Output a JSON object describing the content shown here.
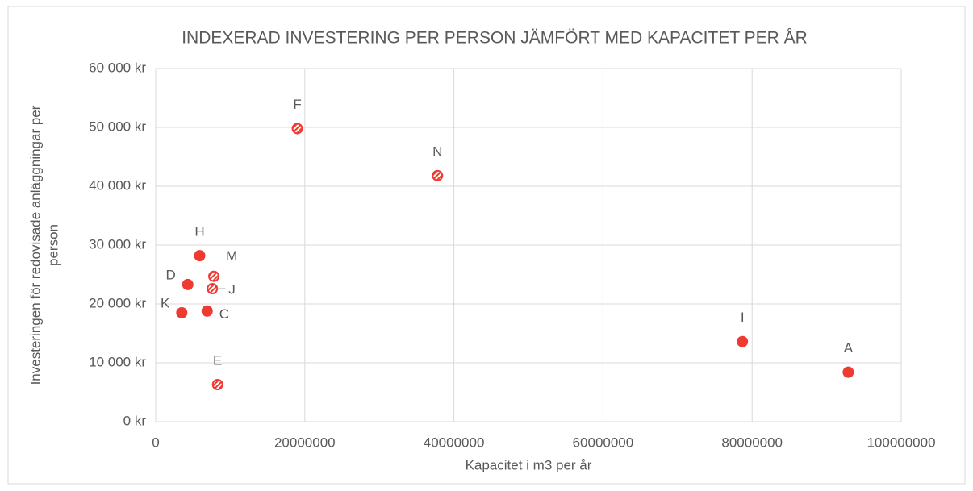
{
  "chart_data": {
    "type": "scatter",
    "title": "INDEXERAD INVESTERING PER PERSON JÄMFÖRT MED KAPACITET PER ÅR",
    "x_label": "Kapacitet i m3 per år",
    "y_label": [
      "Investeringen för redovisade anläggningar per",
      "person"
    ],
    "series": [
      {
        "color": "#ee3b32",
        "labels": [
          "F",
          "N",
          "H",
          "D",
          "M",
          "J",
          "K",
          "C",
          "E",
          "I",
          "A"
        ],
        "x": [
          19000000,
          37800000,
          5900000,
          4300000,
          7800000,
          7600000,
          3500000,
          6900000,
          8300000,
          78700000,
          92900000
        ],
        "values": [
          49800,
          41800,
          28200,
          23300,
          24700,
          22600,
          18500,
          18800,
          6300,
          13600,
          8400
        ],
        "markers": [
          "hatched",
          "hatched",
          "filled",
          "filled",
          "hatched",
          "hatched",
          "filled",
          "filled",
          "hatched",
          "filled",
          "filled"
        ]
      }
    ],
    "xlim": [
      0,
      100000000
    ],
    "xticks": [
      0,
      20000000,
      40000000,
      60000000,
      80000000,
      100000000
    ],
    "ylim": [
      0,
      60000
    ],
    "yticks": [
      {
        "value": 0,
        "label": "0 kr"
      },
      {
        "value": 10000,
        "label": "10 000 kr"
      },
      {
        "value": 20000,
        "label": "20 000 kr"
      },
      {
        "value": 30000,
        "label": "30 000 kr"
      },
      {
        "value": 40000,
        "label": "40 000 kr"
      },
      {
        "value": 50000,
        "label": "50 000 kr"
      },
      {
        "value": 60000,
        "label": "60 000 kr"
      }
    ],
    "grid": true
  }
}
